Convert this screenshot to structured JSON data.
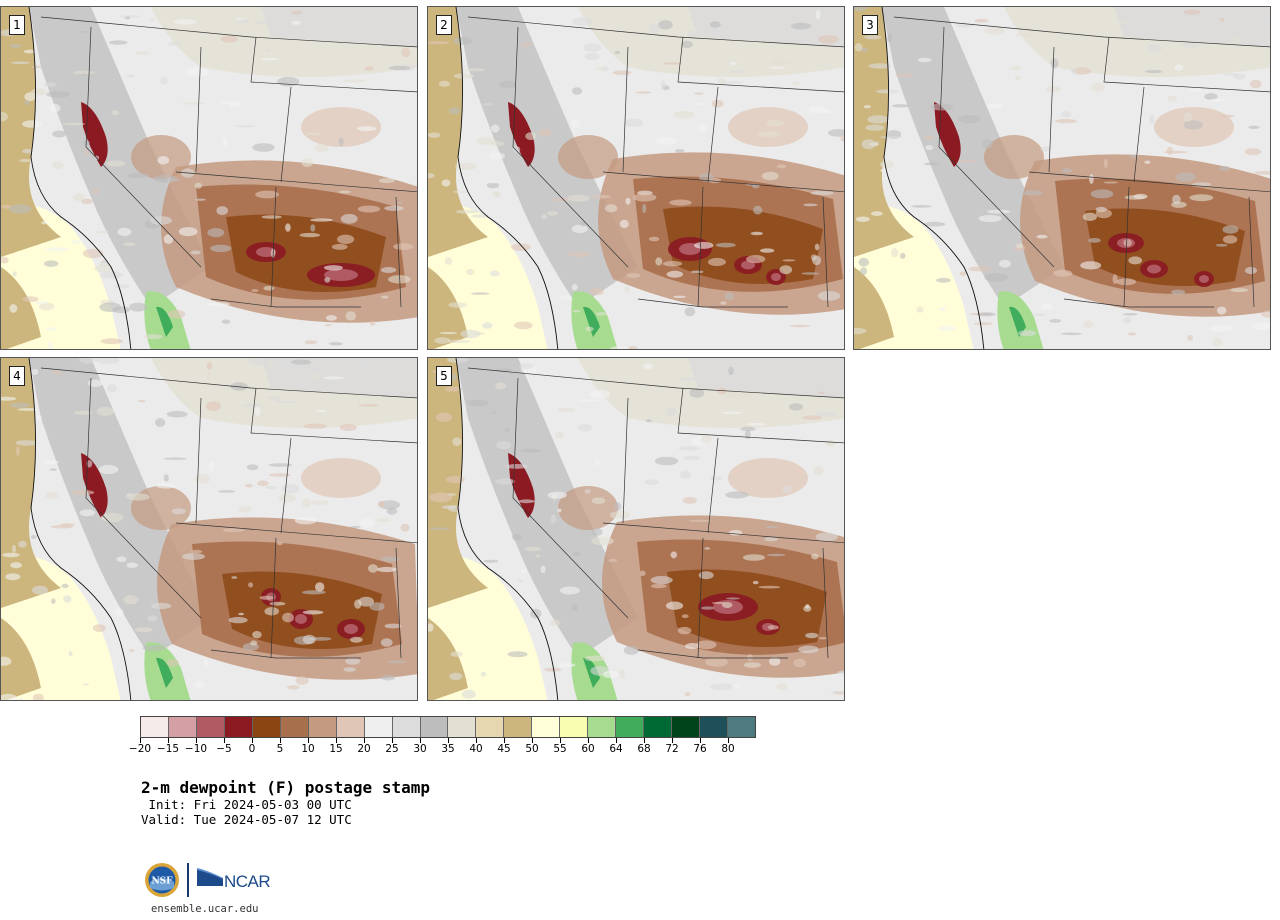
{
  "panels": [
    {
      "label": "1"
    },
    {
      "label": "2"
    },
    {
      "label": "3"
    },
    {
      "label": "4"
    },
    {
      "label": "5"
    }
  ],
  "colorbar": {
    "colors": [
      "#f5ebeb",
      "#d4a0a6",
      "#b05a63",
      "#8b1a22",
      "#8b4513",
      "#a86f4c",
      "#c49a80",
      "#dfc6b7",
      "#efefef",
      "#dcdcdc",
      "#bdbdbd",
      "#e3e0d2",
      "#e6d7b0",
      "#cdb67e",
      "#fffed8",
      "#f8fdb1",
      "#a6db90",
      "#3fad5b",
      "#006a34",
      "#00441b",
      "#1f4f58",
      "#4f7b80"
    ],
    "tick_labels": [
      "−20",
      "−15",
      "−10",
      "−5",
      "0",
      "5",
      "10",
      "15",
      "20",
      "25",
      "30",
      "35",
      "40",
      "45",
      "50",
      "55",
      "60",
      "64",
      "68",
      "72",
      "76",
      "80"
    ]
  },
  "title": "2-m dewpoint (F) postage stamp",
  "init": " Init: Fri 2024-05-03 00 UTC",
  "valid": "Valid: Tue 2024-05-07 12 UTC",
  "logos": {
    "nsf": "NSF",
    "ncar": "NCAR"
  },
  "site": "ensemble.ucar.edu"
}
